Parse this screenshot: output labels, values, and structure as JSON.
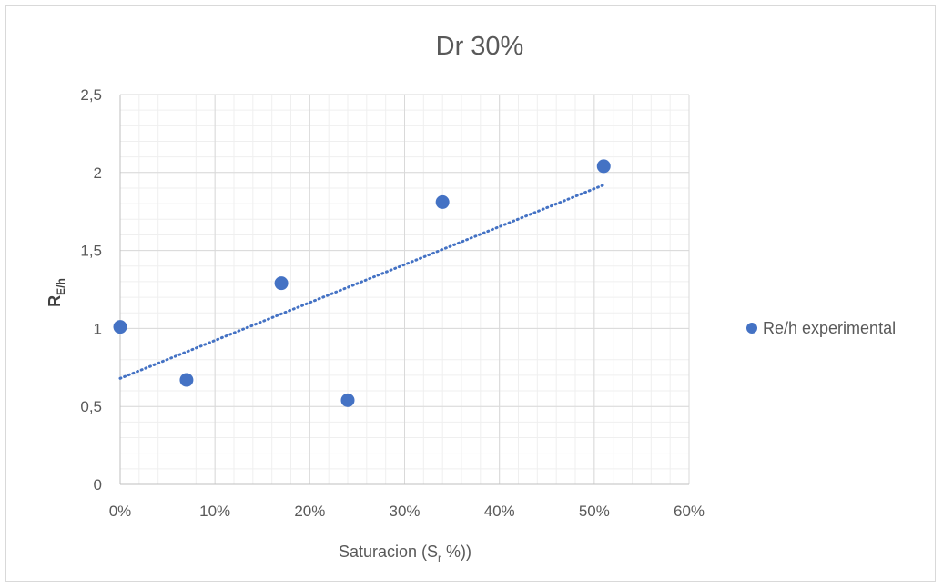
{
  "chart_data": {
    "type": "scatter",
    "title": "Dr 30%",
    "xlabel": {
      "main": "Saturacion (S",
      "sub": "r",
      "tail": " %))"
    },
    "ylabel": {
      "main": "R",
      "sub": "E/h"
    },
    "xlim": [
      0,
      0.6
    ],
    "ylim": [
      0,
      2.5
    ],
    "x_ticks": [
      0,
      0.1,
      0.2,
      0.3,
      0.4,
      0.5,
      0.6
    ],
    "x_tick_labels": [
      "0%",
      "10%",
      "20%",
      "30%",
      "40%",
      "50%",
      "60%"
    ],
    "y_ticks": [
      0,
      0.5,
      1,
      1.5,
      2,
      2.5
    ],
    "y_tick_labels": [
      "0",
      "0,5",
      "1",
      "1,5",
      "2",
      "2,5"
    ],
    "grid": {
      "major": true,
      "minor": true
    },
    "legend_position": "right",
    "series": [
      {
        "name": "Re/h experimental",
        "color": "#4472c4",
        "points": [
          {
            "x": 0.0,
            "y": 1.01
          },
          {
            "x": 0.07,
            "y": 0.67
          },
          {
            "x": 0.17,
            "y": 1.29
          },
          {
            "x": 0.24,
            "y": 0.54
          },
          {
            "x": 0.34,
            "y": 1.81
          },
          {
            "x": 0.51,
            "y": 2.04
          }
        ]
      }
    ],
    "trendline": {
      "type": "linear",
      "style": "dotted",
      "color": "#4472c4",
      "x_range": [
        0,
        0.51
      ],
      "y_at_start": 0.68,
      "y_at_end": 1.92
    }
  }
}
